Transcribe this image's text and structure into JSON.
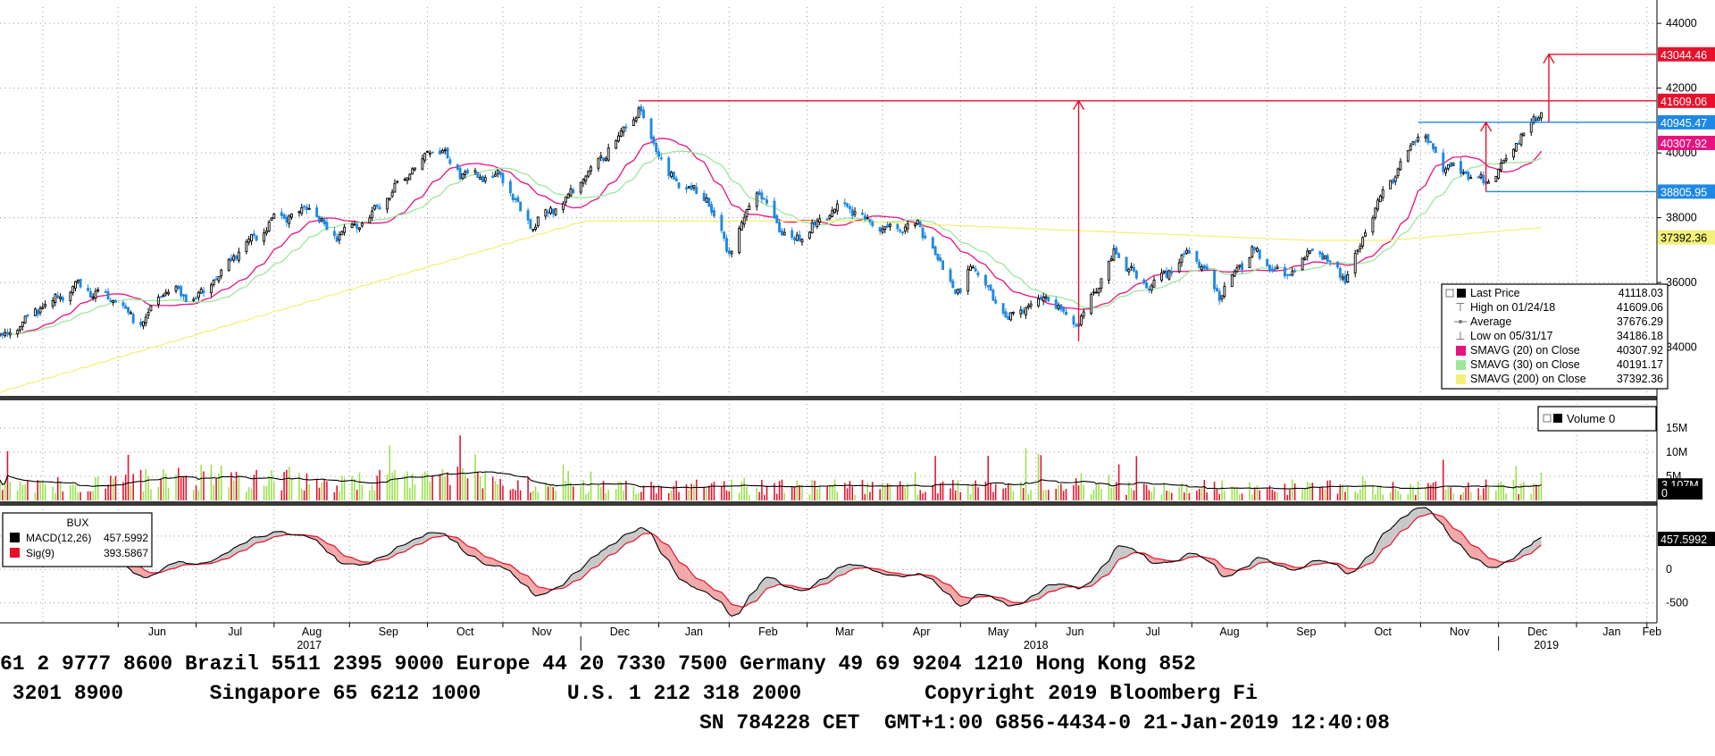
{
  "chart_data": [
    {
      "type": "candlestick",
      "title": "",
      "y_ticks": [
        34000,
        36000,
        38000,
        40000,
        42000,
        44000
      ],
      "ylim": [
        32500,
        44500
      ],
      "grid": true,
      "date_range": [
        "2017-05-15",
        "2019-03-05"
      ],
      "month_labels": [
        "Jun",
        "Jul",
        "Aug",
        "Sep",
        "Oct",
        "Nov",
        "Dec",
        "Jan",
        "Feb",
        "Mar",
        "Apr",
        "May",
        "Jun",
        "Jul",
        "Aug",
        "Sep",
        "Oct",
        "Nov",
        "Dec",
        "Jan",
        "Feb"
      ],
      "year_labels": [
        "2017",
        "2018",
        "2019"
      ],
      "close_anchors": [
        {
          "date": "2017-05-15",
          "close": 34300
        },
        {
          "date": "2017-05-31",
          "close": 35200
        },
        {
          "date": "2017-06-15",
          "close": 35900
        },
        {
          "date": "2017-06-30",
          "close": 35400
        },
        {
          "date": "2017-07-10",
          "close": 34700
        },
        {
          "date": "2017-07-20",
          "close": 35800
        },
        {
          "date": "2017-08-01",
          "close": 35500
        },
        {
          "date": "2017-08-15",
          "close": 36700
        },
        {
          "date": "2017-08-31",
          "close": 37900
        },
        {
          "date": "2017-09-15",
          "close": 38300
        },
        {
          "date": "2017-09-25",
          "close": 37400
        },
        {
          "date": "2017-10-10",
          "close": 38100
        },
        {
          "date": "2017-10-31",
          "close": 39900
        },
        {
          "date": "2017-11-06",
          "close": 40100
        },
        {
          "date": "2017-11-15",
          "close": 39300
        },
        {
          "date": "2017-11-30",
          "close": 39300
        },
        {
          "date": "2017-12-12",
          "close": 37700
        },
        {
          "date": "2017-12-29",
          "close": 38800
        },
        {
          "date": "2018-01-10",
          "close": 39900
        },
        {
          "date": "2018-01-24",
          "close": 41300
        },
        {
          "date": "2018-02-05",
          "close": 39300
        },
        {
          "date": "2018-02-20",
          "close": 38600
        },
        {
          "date": "2018-03-01",
          "close": 36900
        },
        {
          "date": "2018-03-12",
          "close": 38900
        },
        {
          "date": "2018-03-25",
          "close": 37200
        },
        {
          "date": "2018-04-15",
          "close": 38400
        },
        {
          "date": "2018-05-01",
          "close": 37600
        },
        {
          "date": "2018-05-15",
          "close": 37800
        },
        {
          "date": "2018-06-01",
          "close": 35500
        },
        {
          "date": "2018-06-05",
          "close": 36600
        },
        {
          "date": "2018-06-20",
          "close": 34900
        },
        {
          "date": "2018-07-05",
          "close": 35600
        },
        {
          "date": "2018-07-18",
          "close": 34700
        },
        {
          "date": "2018-08-01",
          "close": 36900
        },
        {
          "date": "2018-08-15",
          "close": 35800
        },
        {
          "date": "2018-09-01",
          "close": 37000
        },
        {
          "date": "2018-09-12",
          "close": 35600
        },
        {
          "date": "2018-09-25",
          "close": 37000
        },
        {
          "date": "2018-10-08",
          "close": 36100
        },
        {
          "date": "2018-10-20",
          "close": 37100
        },
        {
          "date": "2018-11-01",
          "close": 36100
        },
        {
          "date": "2018-11-15",
          "close": 38600
        },
        {
          "date": "2018-12-01",
          "close": 40700
        },
        {
          "date": "2018-12-10",
          "close": 39600
        },
        {
          "date": "2018-12-28",
          "close": 39100
        },
        {
          "date": "2019-01-08",
          "close": 40300
        },
        {
          "date": "2019-01-18",
          "close": 41300
        }
      ],
      "series": [
        {
          "name": "SMAVG (20)  on Close",
          "color": "#e8127f",
          "period": 20
        },
        {
          "name": "SMAVG (30)  on Close",
          "color": "#9be89b",
          "period": 30
        },
        {
          "name": "SMAVG (200)  on Close",
          "color": "#f4f07a",
          "period": 200
        }
      ],
      "horizontal_levels": [
        {
          "value": 43044.46,
          "label": "43044.46",
          "color": "#e8102a",
          "start": "2019-01-21"
        },
        {
          "value": 41609.06,
          "label": "41609.06",
          "color": "#e8102a",
          "start": "2018-01-24"
        },
        {
          "value": 40945.47,
          "label": "40945.47",
          "color": "#1e88e5",
          "start": "2018-11-30"
        },
        {
          "value": 38805.95,
          "label": "38805.95",
          "color": "#1e88e5",
          "start": "2018-12-27"
        }
      ],
      "value_tags": [
        {
          "value": 40307.92,
          "label": "40307.92",
          "color": "#e8127f"
        },
        {
          "value": 37392.36,
          "label": "37392.36",
          "color": "#f4f07a"
        }
      ],
      "arrows": [
        {
          "date": "2018-07-18",
          "from": 34186.18,
          "to": 41609.06
        },
        {
          "date": "2018-12-27",
          "from": 38805.95,
          "to": 40945.47
        },
        {
          "date": "2019-01-21",
          "from": 40945.47,
          "to": 43044.46
        }
      ],
      "legend": {
        "position": "bottom-right",
        "rows": [
          {
            "label": "Last Price",
            "value": "41118.03"
          },
          {
            "label": "High on 01/24/18",
            "value": "41609.06"
          },
          {
            "label": "Average",
            "value": "37676.29"
          },
          {
            "label": "Low on 05/31/17",
            "value": "34186.18"
          },
          {
            "label": "SMAVG (20)  on Close",
            "value": "40307.92"
          },
          {
            "label": "SMAVG (30)  on Close",
            "value": "40191.17"
          },
          {
            "label": "SMAVG (200)  on Close",
            "value": "37392.36"
          }
        ]
      }
    },
    {
      "type": "bar",
      "title": "",
      "y_ticks_labels": [
        "15M",
        "10M",
        "5M"
      ],
      "y_ticks": [
        15,
        10,
        5
      ],
      "ylim": [
        0,
        20
      ],
      "unit": "M",
      "legend": {
        "label": "Volume  0",
        "position": "top-right"
      },
      "value_tags": [
        {
          "label": "3.107M",
          "value": 3.107
        },
        {
          "label": "0",
          "value": 0
        }
      ]
    },
    {
      "type": "line",
      "title": "BUX",
      "y_ticks": [
        500,
        0,
        -500
      ],
      "ylim": [
        -800,
        900
      ],
      "series": [
        {
          "name": "MACD(12,26)",
          "value": "457.5992",
          "color": "#000000"
        },
        {
          "name": "Sig(9)",
          "value": "393.5867",
          "color": "#e8102a"
        }
      ],
      "value_tags": [
        {
          "label": "457.5992",
          "value": 457.5992
        }
      ]
    }
  ],
  "footer": {
    "line1": "61 2 9777 8600 Brazil 5511 2395 9000 Europe 44 20 7330 7500 Germany 49 69 9204 1210 Hong Kong 852",
    "line2": " 3201 8900       Singapore 65 6212 1000       U.S. 1 212 318 2000          Copyright 2019 Bloomberg Fi",
    "line3": "SN 784228 CET  GMT+1:00 G856-4434-0 21-Jan-2019 12:40:08"
  },
  "colors": {
    "up": "#000000",
    "down": "#1e88e5",
    "volume_up": "#99e14a",
    "volume_down": "#e8102a",
    "macd_fill_up": "#c8c8c8",
    "macd_fill_down": "#f2a8a8"
  }
}
